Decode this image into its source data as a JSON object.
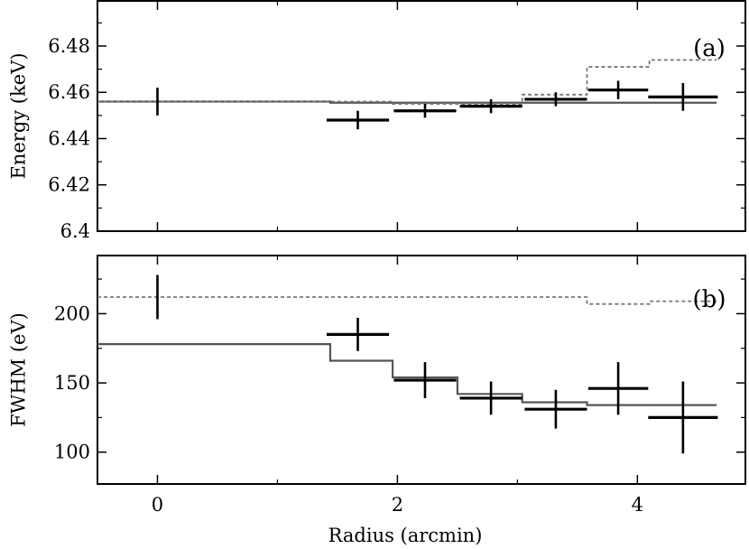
{
  "chart_data": [
    {
      "type": "line",
      "panel_label": "(a)",
      "xlabel": "",
      "ylabel": "Energy (keV)",
      "xlim": [
        -0.5,
        4.9
      ],
      "ylim": [
        6.4,
        6.4995
      ],
      "y_ticks": [
        {
          "value": 6.4,
          "label": "6.4"
        },
        {
          "value": 6.42,
          "label": "6.42"
        },
        {
          "value": 6.44,
          "label": "6.44"
        },
        {
          "value": 6.46,
          "label": "6.46"
        },
        {
          "value": 6.48,
          "label": "6.48"
        }
      ],
      "x_ticks": [
        0,
        2,
        4
      ],
      "grid": false,
      "series": [
        {
          "style": "data-points",
          "color": "#000000",
          "points": [
            {
              "x": 0.0,
              "xerr": 0.0,
              "y": 6.456,
              "yerr": 0.006
            },
            {
              "x": 1.67,
              "xerr": 0.26,
              "y": 6.448,
              "yerr": 0.004
            },
            {
              "x": 2.23,
              "xerr": 0.26,
              "y": 6.452,
              "yerr": 0.003
            },
            {
              "x": 2.78,
              "xerr": 0.26,
              "y": 6.454,
              "yerr": 0.003
            },
            {
              "x": 3.32,
              "xerr": 0.26,
              "y": 6.457,
              "yerr": 0.003
            },
            {
              "x": 3.84,
              "xerr": 0.25,
              "y": 6.461,
              "yerr": 0.004
            },
            {
              "x": 4.38,
              "xerr": 0.29,
              "y": 6.458,
              "yerr": 0.006
            }
          ]
        },
        {
          "style": "step-solid",
          "color": "#555555",
          "steps": [
            {
              "x0": -0.5,
              "x1": 1.44,
              "y": 6.456
            },
            {
              "x0": 1.44,
              "x1": 4.66,
              "y": 6.4555
            }
          ]
        },
        {
          "style": "step-dotted",
          "color": "#777777",
          "steps": [
            {
              "x0": -0.5,
              "x1": 1.96,
              "y": 6.456
            },
            {
              "x0": 1.96,
              "x1": 2.5,
              "y": 6.455
            },
            {
              "x0": 2.5,
              "x1": 3.04,
              "y": 6.455
            },
            {
              "x0": 3.04,
              "x1": 3.58,
              "y": 6.459
            },
            {
              "x0": 3.58,
              "x1": 4.1,
              "y": 6.471
            },
            {
              "x0": 4.1,
              "x1": 4.66,
              "y": 6.474
            }
          ]
        }
      ]
    },
    {
      "type": "line",
      "panel_label": "(b)",
      "xlabel": "Radius (arcmin)",
      "ylabel": "FWHM (eV)",
      "xlim": [
        -0.5,
        4.9
      ],
      "ylim": [
        77,
        242
      ],
      "y_ticks": [
        {
          "value": 100,
          "label": "100"
        },
        {
          "value": 150,
          "label": "150"
        },
        {
          "value": 200,
          "label": "200"
        }
      ],
      "x_ticks": [
        0,
        2,
        4
      ],
      "x_tick_labels": [
        "0",
        "2",
        "4"
      ],
      "grid": false,
      "series": [
        {
          "style": "data-points",
          "color": "#000000",
          "points": [
            {
              "x": 0.0,
              "xerr": 0.0,
              "y": 212,
              "yerr": 16
            },
            {
              "x": 1.67,
              "xerr": 0.26,
              "y": 185,
              "yerr": 12
            },
            {
              "x": 2.23,
              "xerr": 0.26,
              "y": 152,
              "yerr": 13
            },
            {
              "x": 2.78,
              "xerr": 0.26,
              "y": 139,
              "yerr": 12
            },
            {
              "x": 3.32,
              "xerr": 0.26,
              "y": 131,
              "yerr": 14
            },
            {
              "x": 3.84,
              "xerr": 0.25,
              "y": 146,
              "yerr": 19
            },
            {
              "x": 4.38,
              "xerr": 0.29,
              "y": 125,
              "yerr": 26
            }
          ]
        },
        {
          "style": "step-solid",
          "color": "#555555",
          "steps": [
            {
              "x0": -0.5,
              "x1": 1.44,
              "y": 178
            },
            {
              "x0": 1.44,
              "x1": 1.96,
              "y": 166
            },
            {
              "x0": 1.96,
              "x1": 2.5,
              "y": 154
            },
            {
              "x0": 2.5,
              "x1": 3.04,
              "y": 142
            },
            {
              "x0": 3.04,
              "x1": 3.58,
              "y": 136
            },
            {
              "x0": 3.58,
              "x1": 4.66,
              "y": 134
            }
          ]
        },
        {
          "style": "step-dotted",
          "color": "#777777",
          "steps": [
            {
              "x0": -0.5,
              "x1": 1.44,
              "y": 212
            },
            {
              "x0": 1.44,
              "x1": 3.58,
              "y": 212
            },
            {
              "x0": 3.58,
              "x1": 4.1,
              "y": 207
            },
            {
              "x0": 4.1,
              "x1": 4.66,
              "y": 209
            }
          ]
        }
      ]
    }
  ]
}
